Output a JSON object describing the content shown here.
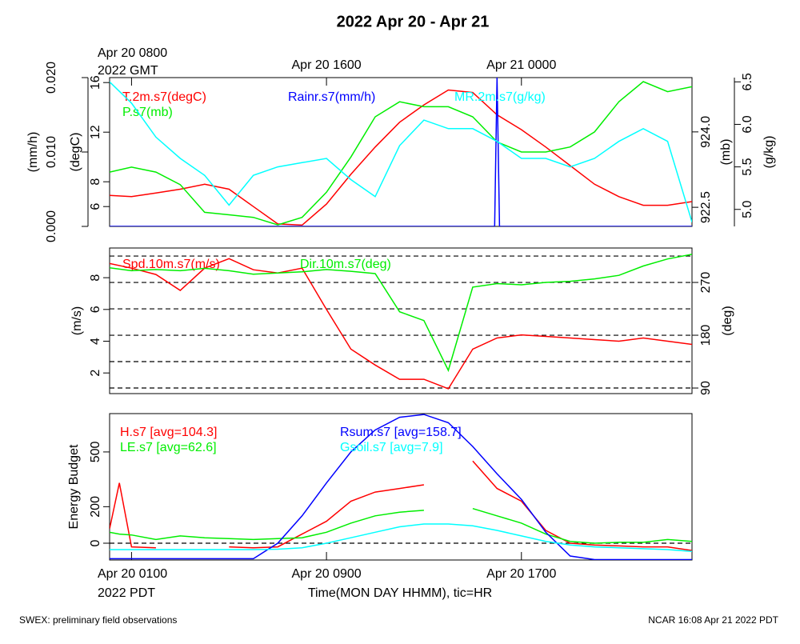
{
  "title": "2022 Apr 20 - Apr 21",
  "footer_left": "SWEX: preliminary field observations",
  "footer_right": "NCAR 16:08 Apr 21 2022 PDT",
  "chart_data": [
    {
      "type": "line",
      "xlim": [
        0.1,
        24
      ],
      "x": [
        0.1,
        1,
        2,
        3,
        4,
        5,
        6,
        7,
        8,
        9,
        10,
        11,
        12,
        13,
        14,
        15,
        16,
        17,
        18,
        19,
        20,
        21,
        22,
        23,
        24
      ],
      "top_xticks": [
        {
          "value": 1,
          "label": "Apr 20 0800"
        },
        {
          "value": 9,
          "label": "Apr 20 1600"
        },
        {
          "value": 17,
          "label": "Apr 21 0000"
        }
      ],
      "x_note": "2022 GMT",
      "axes": [
        {
          "label": "(mm/h)",
          "lim": [
            0,
            0.02
          ],
          "ticks": [
            {
              "value": 0,
              "label": "0.000"
            },
            {
              "value": 0.01,
              "label": "0.010"
            },
            {
              "value": 0.02,
              "label": "0.020"
            }
          ]
        },
        {
          "label": "(degC)",
          "lim": [
            4.4,
            16.4
          ],
          "ticks": [
            6,
            8,
            12,
            16
          ]
        },
        {
          "label": "(mb)",
          "lim": [
            922.12,
            925.08
          ],
          "ticks": [
            922.5,
            {
              "value": 924,
              "label": "924.0"
            }
          ]
        },
        {
          "label": "(g/kg)",
          "lim": [
            4.8,
            6.55
          ],
          "ticks": [
            {
              "value": 5,
              "label": "5.0"
            },
            5.5,
            {
              "value": 6,
              "label": "6.0"
            },
            6.5
          ]
        }
      ],
      "series": [
        {
          "name": "T.2m.s7(degC)",
          "color": "#ff0000",
          "axis": 1,
          "values": [
            6.9,
            6.8,
            7.1,
            7.4,
            7.8,
            7.4,
            6.0,
            4.6,
            4.5,
            6.2,
            8.6,
            10.8,
            12.8,
            14.2,
            15.4,
            15.2,
            13.4,
            12.2,
            10.8,
            9.3,
            7.8,
            6.8,
            6.1,
            6.1,
            6.4
          ]
        },
        {
          "name": "P.s7(mb)",
          "color": "#00ee00",
          "axis": 2,
          "values": [
            923.2,
            923.3,
            923.2,
            922.95,
            922.4,
            922.35,
            922.3,
            922.15,
            922.3,
            922.8,
            923.5,
            924.3,
            924.6,
            924.5,
            924.5,
            924.3,
            923.8,
            923.6,
            923.6,
            923.7,
            924.0,
            924.6,
            925.0,
            924.8,
            924.9
          ]
        },
        {
          "name": "Rainr.s7(mm/h)",
          "color": "#0000ff",
          "axis": 0,
          "x": [
            0.1,
            15.9,
            16.0,
            16.1,
            24
          ],
          "values": [
            0,
            0,
            0.02,
            0,
            0
          ]
        },
        {
          "name": "MR.2m.s7(g/kg)",
          "color": "#00ffff",
          "axis": 3,
          "values": [
            6.5,
            6.25,
            5.85,
            5.6,
            5.4,
            5.05,
            5.4,
            5.5,
            5.55,
            5.6,
            5.35,
            5.15,
            5.75,
            6.05,
            5.95,
            5.95,
            5.8,
            5.6,
            5.6,
            5.5,
            5.6,
            5.8,
            5.95,
            5.8,
            4.85
          ]
        }
      ]
    },
    {
      "type": "line",
      "xlim": [
        0.1,
        24
      ],
      "x": [
        0.1,
        1,
        2,
        3,
        4,
        5,
        6,
        7,
        8,
        9,
        10,
        11,
        12,
        13,
        14,
        15,
        16,
        17,
        18,
        19,
        20,
        21,
        22,
        23,
        24
      ],
      "axes": [
        {
          "label": "(m/s)",
          "lim": [
            0.7,
            9.87
          ],
          "ticks": [
            2,
            4,
            6,
            8
          ]
        },
        {
          "label": "(deg)",
          "lim": [
            80.5,
            328.7
          ],
          "ticks": [
            90,
            180,
            270
          ]
        }
      ],
      "grid_axis": 1,
      "gridlines": [
        90,
        135,
        180,
        225,
        270,
        315
      ],
      "series": [
        {
          "name": "Spd.10m.s7(m/s)",
          "color": "#ff0000",
          "axis": 0,
          "values": [
            8.9,
            8.6,
            8.2,
            7.2,
            8.6,
            9.2,
            8.5,
            8.3,
            8.6,
            6.0,
            3.5,
            2.5,
            1.6,
            1.6,
            1.0,
            3.5,
            4.2,
            4.4,
            4.3,
            4.2,
            4.1,
            4.0,
            4.2,
            4.0,
            3.8
          ]
        },
        {
          "name": "Dir.10m.s7(deg)",
          "color": "#00ee00",
          "axis": 1,
          "values": [
            295,
            290,
            292,
            290,
            294,
            290,
            284,
            286,
            288,
            292,
            289,
            285,
            220,
            205,
            120,
            262,
            268,
            266,
            270,
            272,
            276,
            282,
            298,
            310,
            318
          ]
        }
      ]
    },
    {
      "type": "line",
      "xlim": [
        0.1,
        24
      ],
      "x": [
        0.1,
        0.5,
        1,
        2,
        3,
        4,
        5,
        6,
        7,
        8,
        9,
        10,
        11,
        12,
        13,
        14,
        15,
        16,
        17,
        18,
        19,
        20,
        21,
        22,
        23,
        24
      ],
      "xticks": [
        {
          "value": 1,
          "label": "Apr 20 0100"
        },
        {
          "value": 9,
          "label": "Apr 20 0900"
        },
        {
          "value": 17,
          "label": "Apr 20 1700"
        }
      ],
      "x_note": "2022 PDT",
      "xlabel": "Time(MON DAY HHMM), tic=HR",
      "axes": [
        {
          "label": "Energy Budget",
          "lim": [
            -92,
            710
          ],
          "ticks": [
            0,
            200,
            500
          ]
        }
      ],
      "grid_axis": 0,
      "gridlines": [
        0
      ],
      "series": [
        {
          "name": "H.s7 [avg=104.3]",
          "color": "#ff0000",
          "axis": 0,
          "values": [
            80,
            330,
            -20,
            -25,
            null,
            null,
            -20,
            -25,
            -20,
            50,
            120,
            230,
            280,
            300,
            320,
            null,
            450,
            300,
            230,
            70,
            0,
            -10,
            -15,
            -20,
            -20,
            -40
          ]
        },
        {
          "name": "LE.s7 [avg=62.6]",
          "color": "#00ee00",
          "axis": 0,
          "values": [
            60,
            50,
            45,
            20,
            40,
            30,
            25,
            20,
            25,
            30,
            60,
            110,
            150,
            170,
            180,
            null,
            190,
            150,
            110,
            50,
            10,
            0,
            5,
            5,
            20,
            10
          ]
        },
        {
          "name": "Rsum.s7 [avg=158.7]",
          "color": "#0000ff",
          "axis": 0,
          "values": [
            -85,
            -85,
            -85,
            -85,
            -85,
            -85,
            -85,
            -85,
            0,
            150,
            330,
            500,
            620,
            690,
            705,
            660,
            530,
            380,
            240,
            60,
            -70,
            -90,
            -90,
            -90,
            -90,
            -90
          ]
        },
        {
          "name": "Gsoil.s7 [avg=7.9]",
          "color": "#00ffff",
          "axis": 0,
          "values": [
            -35,
            -35,
            -35,
            -35,
            -35,
            -35,
            -35,
            -35,
            -33,
            -25,
            0,
            30,
            60,
            90,
            105,
            105,
            95,
            70,
            40,
            10,
            -10,
            -20,
            -25,
            -30,
            -35,
            -45
          ]
        }
      ]
    }
  ]
}
